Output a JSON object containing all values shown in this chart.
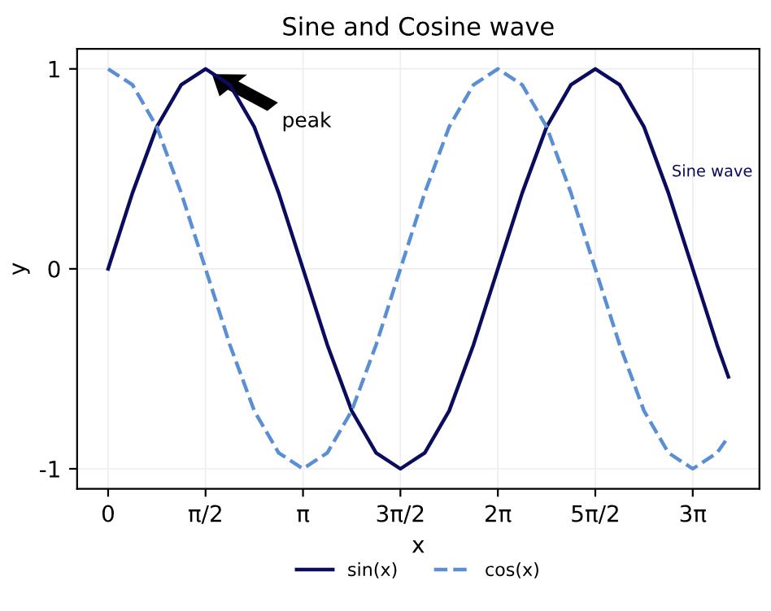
{
  "chart_data": {
    "type": "line",
    "title": "Sine and Cosine wave",
    "xlabel": "x",
    "ylabel": "y",
    "x": [
      0,
      0.393,
      0.785,
      1.178,
      1.571,
      1.963,
      2.356,
      2.749,
      3.142,
      3.534,
      3.927,
      4.32,
      4.712,
      5.105,
      5.498,
      5.89,
      6.283,
      6.676,
      7.069,
      7.461,
      7.854,
      8.247,
      8.639,
      9.032,
      9.425,
      9.817,
      10
    ],
    "series": [
      {
        "name": "sin(x)",
        "color": "#0c0c5e",
        "line_style": "solid",
        "values": [
          0,
          0.38,
          0.71,
          0.92,
          1,
          0.92,
          0.71,
          0.38,
          0,
          -0.38,
          -0.71,
          -0.92,
          -1,
          -0.92,
          -0.71,
          -0.38,
          0,
          0.38,
          0.71,
          0.92,
          1,
          0.92,
          0.71,
          0.38,
          0,
          -0.38,
          -0.54
        ]
      },
      {
        "name": "cos(x)",
        "color": "#5b8fd4",
        "line_style": "dashed",
        "values": [
          1,
          0.92,
          0.71,
          0.38,
          0,
          -0.38,
          -0.71,
          -0.92,
          -1,
          -0.92,
          -0.71,
          -0.38,
          0,
          0.38,
          0.71,
          0.92,
          1,
          0.92,
          0.71,
          0.38,
          0,
          -0.38,
          -0.71,
          -0.92,
          -1,
          -0.92,
          -0.84
        ]
      }
    ],
    "xlim": [
      -0.5,
      10.5
    ],
    "ylim": [
      -1.1,
      1.1
    ],
    "xticks": [
      0,
      {
        "value": 1.571,
        "label": "π/2"
      },
      {
        "value": 3.142,
        "label": "π"
      },
      {
        "value": 4.712,
        "label": "3π/2"
      },
      {
        "value": 6.283,
        "label": "2π"
      },
      {
        "value": 7.854,
        "label": "5π/2"
      },
      {
        "value": 9.425,
        "label": "3π"
      }
    ],
    "yticks": [
      -1,
      0,
      1
    ],
    "annotations": [
      "peak",
      "Sine wave"
    ],
    "grid": true,
    "legend": "bottom",
    "marker": "none"
  }
}
